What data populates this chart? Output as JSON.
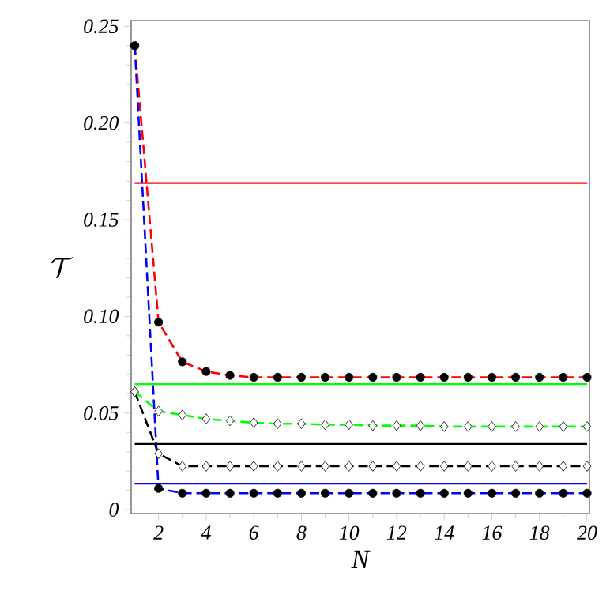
{
  "chart_data": {
    "type": "line",
    "xlabel": "N",
    "ylabel": "\\mathcal{T}",
    "x": [
      1,
      2,
      3,
      4,
      5,
      6,
      7,
      8,
      9,
      10,
      11,
      12,
      13,
      14,
      15,
      16,
      17,
      18,
      19,
      20
    ],
    "xlim": [
      0.85,
      20.1
    ],
    "ylim": [
      -0.002,
      0.253
    ],
    "xticks": [
      2,
      4,
      6,
      8,
      10,
      12,
      14,
      16,
      18,
      20
    ],
    "yticks": [
      0,
      0.05,
      {
        "value": 0.1,
        "label": "0.10"
      },
      0.15,
      {
        "value": 0.2,
        "label": "0.20"
      },
      0.25
    ],
    "series": [
      {
        "color": "#ff0000",
        "line_style": "dashed",
        "marker": "circle",
        "values": [
          0.24,
          0.097,
          0.0765,
          0.0715,
          0.0695,
          0.0685,
          0.0685,
          0.0685,
          0.0685,
          0.0685,
          0.0685,
          0.0685,
          0.0685,
          0.0685,
          0.0685,
          0.0685,
          0.0685,
          0.0685,
          0.0685,
          0.0685
        ]
      },
      {
        "color": "#0000ff",
        "line_style": "dashed",
        "marker": "circle",
        "values": [
          0.24,
          0.011,
          0.0085,
          0.0085,
          0.0085,
          0.0085,
          0.0085,
          0.0085,
          0.0085,
          0.0085,
          0.0085,
          0.0085,
          0.0085,
          0.0085,
          0.0085,
          0.0085,
          0.0085,
          0.0085,
          0.0085,
          0.0085
        ]
      },
      {
        "color": "#00ff00",
        "line_style": "dashed",
        "marker": "diamond",
        "values": [
          0.061,
          0.051,
          0.049,
          0.047,
          0.046,
          0.045,
          0.0445,
          0.0445,
          0.044,
          0.044,
          0.0435,
          0.0435,
          0.0435,
          0.043,
          0.043,
          0.043,
          0.043,
          0.043,
          0.043,
          0.043
        ]
      },
      {
        "color": "#000000",
        "line_style": "dashed",
        "marker": "diamond",
        "values": [
          0.061,
          0.029,
          0.0225,
          0.0225,
          0.0225,
          0.0225,
          0.0225,
          0.0225,
          0.0225,
          0.0225,
          0.0225,
          0.0225,
          0.0225,
          0.0225,
          0.0225,
          0.0225,
          0.0225,
          0.0225,
          0.0225,
          0.0225
        ]
      }
    ],
    "ref_lines": [
      {
        "axis": "y",
        "value": 0.169,
        "color": "#ff0000",
        "line_style": "solid"
      },
      {
        "axis": "y",
        "value": 0.065,
        "color": "#00ff00",
        "line_style": "solid"
      },
      {
        "axis": "y",
        "value": 0.034,
        "color": "#000000",
        "line_style": "solid"
      },
      {
        "axis": "y",
        "value": 0.0135,
        "color": "#0000ff",
        "line_style": "solid"
      }
    ]
  }
}
